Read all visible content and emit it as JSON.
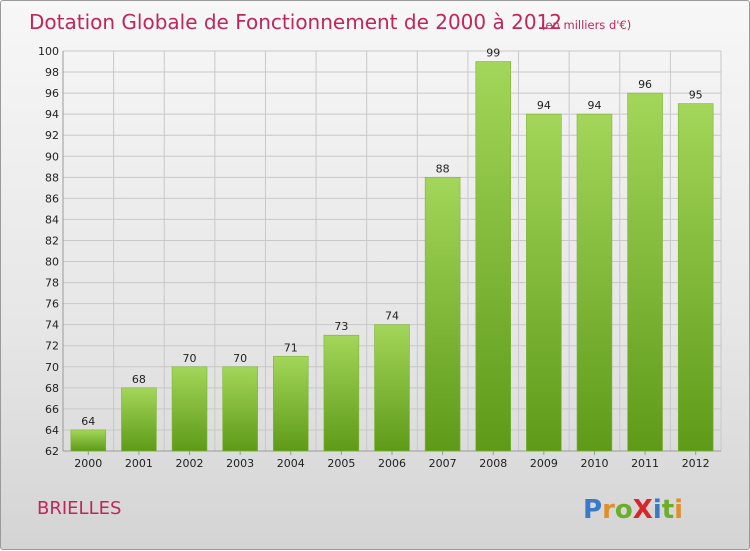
{
  "title": "Dotation Globale de Fonctionnement de 2000 à 2012",
  "unit": "(en milliers d'€)",
  "town": "BRIELLES",
  "logo": {
    "text": "ProXiti",
    "letter_colors": [
      "#3a78c8",
      "#e0902a",
      "#6cae2c",
      "#d9262c",
      "#3a78c8",
      "#6cae2c",
      "#e0902a"
    ]
  },
  "colors": {
    "accent": "#c0265a",
    "bar_light": "#a3d65a",
    "bar_dark": "#5e9a18"
  },
  "chart_data": {
    "type": "bar",
    "title": "Dotation Globale de Fonctionnement de 2000 à 2012",
    "subtitle": "(en milliers d'€)",
    "categories": [
      "2000",
      "2001",
      "2002",
      "2003",
      "2004",
      "2005",
      "2006",
      "2007",
      "2008",
      "2009",
      "2010",
      "2011",
      "2012"
    ],
    "values": [
      64,
      68,
      70,
      70,
      71,
      73,
      74,
      88,
      99,
      94,
      94,
      96,
      95
    ],
    "ylim": [
      62,
      100
    ],
    "ytick_step": 2,
    "grid": true,
    "legend": "none"
  }
}
